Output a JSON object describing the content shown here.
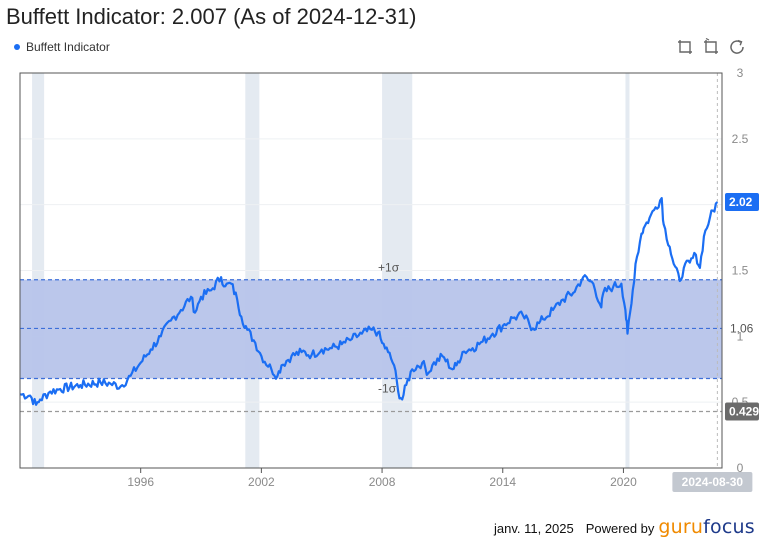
{
  "title": "Buffett Indicator: 2.007 (As of 2024-12-31)",
  "legend": {
    "label": "Buffett Indicator",
    "color": "#1b6ef3"
  },
  "toolbox": [
    "zoom-icon",
    "zoom-reset-icon",
    "restore-icon"
  ],
  "footer": {
    "date": "janv. 11, 2025",
    "powered": "Powered by",
    "brand_a": "guru",
    "brand_b": "focus"
  },
  "chart_data": {
    "type": "line",
    "series": [
      {
        "name": "Buffett Indicator",
        "color": "#1b6ef3",
        "x": [
          1990.0,
          1990.5,
          1990.8,
          1991.0,
          1991.5,
          1992.0,
          1993.0,
          1994.0,
          1994.5,
          1995.0,
          1995.5,
          1996.0,
          1996.5,
          1997.0,
          1997.5,
          1998.0,
          1998.5,
          1998.7,
          1999.0,
          1999.5,
          2000.0,
          2000.2,
          2000.5,
          2000.8,
          2001.0,
          2001.3,
          2001.7,
          2002.0,
          2002.5,
          2002.8,
          2003.0,
          2003.5,
          2004.0,
          2004.5,
          2005.0,
          2005.5,
          2006.0,
          2006.5,
          2007.0,
          2007.5,
          2007.8,
          2008.0,
          2008.3,
          2008.6,
          2008.8,
          2009.0,
          2009.2,
          2009.5,
          2010.0,
          2010.3,
          2010.5,
          2011.0,
          2011.5,
          2011.7,
          2012.0,
          2012.5,
          2013.0,
          2013.5,
          2014.0,
          2014.5,
          2015.0,
          2015.5,
          2015.8,
          2016.0,
          2016.5,
          2017.0,
          2017.5,
          2018.0,
          2018.5,
          2018.9,
          2019.0,
          2019.5,
          2019.9,
          2020.1,
          2020.2,
          2020.4,
          2020.6,
          2020.9,
          2021.0,
          2021.3,
          2021.6,
          2021.9,
          2022.0,
          2022.3,
          2022.5,
          2022.8,
          2023.0,
          2023.3,
          2023.6,
          2023.8,
          2024.0,
          2024.3,
          2024.67
        ],
        "values": [
          0.56,
          0.55,
          0.48,
          0.52,
          0.58,
          0.6,
          0.63,
          0.65,
          0.64,
          0.62,
          0.7,
          0.8,
          0.9,
          1.0,
          1.12,
          1.2,
          1.3,
          1.18,
          1.3,
          1.35,
          1.45,
          1.38,
          1.4,
          1.28,
          1.15,
          1.05,
          0.95,
          0.85,
          0.75,
          0.7,
          0.78,
          0.85,
          0.88,
          0.86,
          0.9,
          0.91,
          0.94,
          0.98,
          1.02,
          1.05,
          1.03,
          0.95,
          0.88,
          0.78,
          0.58,
          0.52,
          0.63,
          0.75,
          0.8,
          0.72,
          0.78,
          0.85,
          0.75,
          0.78,
          0.88,
          0.91,
          0.96,
          1.02,
          1.08,
          1.14,
          1.16,
          1.06,
          1.1,
          1.13,
          1.2,
          1.28,
          1.33,
          1.45,
          1.4,
          1.22,
          1.33,
          1.38,
          1.4,
          1.2,
          1.02,
          1.25,
          1.55,
          1.78,
          1.82,
          1.9,
          1.98,
          2.05,
          1.85,
          1.68,
          1.55,
          1.42,
          1.52,
          1.56,
          1.62,
          1.52,
          1.76,
          1.9,
          2.02
        ]
      }
    ],
    "xlim": [
      1990.0,
      2024.9
    ],
    "ylim": [
      0,
      3
    ],
    "x_ticks": [
      "1996",
      "2002",
      "2008",
      "2014",
      "2020"
    ],
    "y_ticks": [
      "0",
      "0.5",
      "1",
      "1.5",
      "2",
      "2.5",
      "3"
    ],
    "recession_bands": [
      [
        1990.6,
        1991.2
      ],
      [
        2001.2,
        2001.9
      ],
      [
        2008.0,
        2009.5
      ],
      [
        2020.1,
        2020.3
      ]
    ],
    "mean": 1.06,
    "plus_sigma": 1.43,
    "minus_sigma": 0.68,
    "min": 0.429,
    "band_labels": {
      "plus": "+1σ",
      "minus": "-1σ"
    },
    "tags": {
      "last": "2.02",
      "mean": "1.06",
      "min": "0.429",
      "date": "2024-08-30"
    },
    "colors": {
      "band": "#b7c4ea",
      "recession": "#e4eaf1",
      "dashed": "#3d6fd9",
      "min_line": "#9a9a9a",
      "tag_last": "#1b6ef3",
      "tag_min": "#6b6b6b",
      "tag_date": "#c3c8d0"
    }
  }
}
